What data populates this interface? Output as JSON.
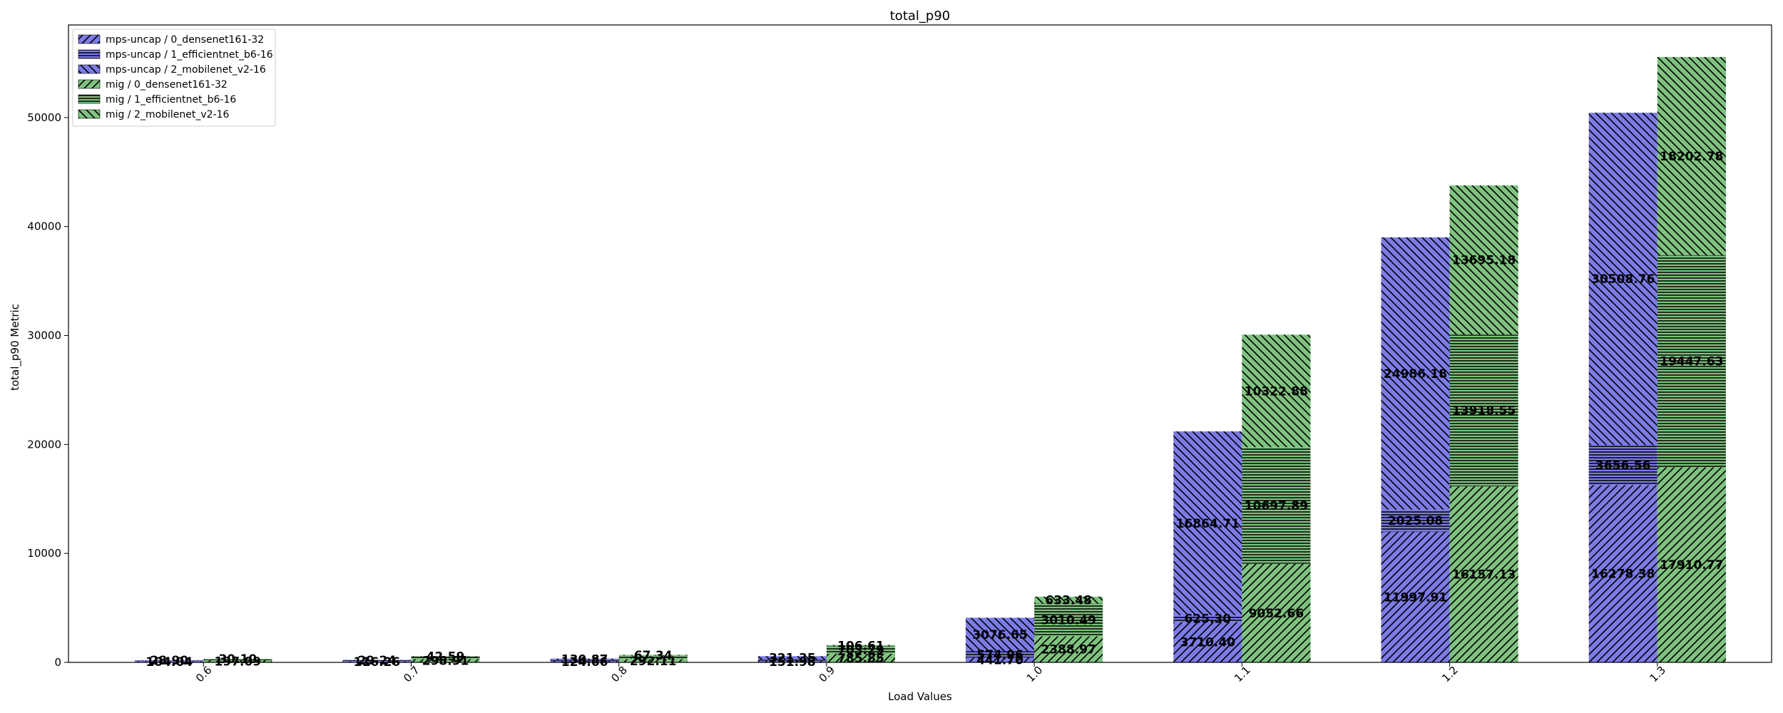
{
  "chart_data": {
    "type": "bar",
    "title": "total_p90",
    "xlabel": "Load Values",
    "ylabel": "total_p90 Metric",
    "ylim": [
      0,
      58500
    ],
    "yticks": [
      0,
      10000,
      20000,
      30000,
      40000,
      50000
    ],
    "ytick_labels": [
      "0",
      "10000",
      "20000",
      "30000",
      "40000",
      "50000"
    ],
    "categories": [
      "0.6",
      "0.7",
      "0.8",
      "0.9",
      "1.0",
      "1.1",
      "1.2",
      "1.3"
    ],
    "stacked": true,
    "grid": false,
    "legend_position": "top-left",
    "groups": [
      {
        "name": "mps-uncap",
        "color": "#7b7be8",
        "series": [
          {
            "name": "0_densenet161-32",
            "hatch": "////",
            "values": [
              104.04,
              116.26,
              124.66,
              151.98,
              441.7,
              3710.4,
              11997.91,
              16278.38
            ],
            "labels": [
              "104.04",
              "116.26",
              "124.66",
              "151.98",
              "441.70",
              "3710.40",
              "11997.91",
              "16278.38"
            ]
          },
          {
            "name": "1_efficientnet_b6-16",
            "hatch": "----",
            "values": [
              70.0,
              80.0,
              89.5,
              98.0,
              574.96,
              625.3,
              2025.08,
              3656.56
            ],
            "labels": [
              "",
              "",
              "",
              "",
              "574.96",
              "625.30",
              "2025.08",
              "3656.56"
            ]
          },
          {
            "name": "2_mobilenet_v2-16",
            "hatch": "\\\\\\\\",
            "values": [
              28.9,
              29.24,
              130.87,
              321.35,
              3076.65,
              16864.71,
              24986.18,
              30508.76
            ],
            "labels": [
              "28.90",
              "29.24",
              "130.87",
              "321.35",
              "3076.65",
              "16864.71",
              "24986.18",
              "30508.76"
            ]
          }
        ]
      },
      {
        "name": "mig",
        "color": "#7fc27f",
        "series": [
          {
            "name": "0_densenet161-32",
            "hatch": "////",
            "values": [
              197.09,
              298.91,
              292.11,
              785.85,
              2388.97,
              9052.66,
              16157.13,
              17910.77
            ],
            "labels": [
              "197.09",
              "298.91",
              "292.11",
              "785.85",
              "2388.97",
              "9052.66",
              "16157.13",
              "17910.77"
            ]
          },
          {
            "name": "1_efficientnet_b6-16",
            "hatch": "----",
            "values": [
              100.0,
              224.44,
              330.5,
              703.29,
              3010.49,
              10697.89,
              13918.55,
              19447.63
            ],
            "labels": [
              "",
              "",
              "",
              "703.29",
              "3010.49",
              "10697.89",
              "13918.55",
              "19447.63"
            ]
          },
          {
            "name": "2_mobilenet_v2-16",
            "hatch": "\\\\\\\\",
            "values": [
              30.1,
              42.59,
              67.34,
              106.61,
              633.48,
              10322.88,
              13695.18,
              18202.78
            ],
            "labels": [
              "30.10",
              "42.59",
              "67.34",
              "106.61",
              "633.48",
              "10322.88",
              "13695.18",
              "18202.78"
            ]
          }
        ]
      }
    ],
    "legend": [
      {
        "label": "mps-uncap / 0_densenet161-32",
        "group": 0,
        "series": 0
      },
      {
        "label": "mps-uncap / 1_efficientnet_b6-16",
        "group": 0,
        "series": 1
      },
      {
        "label": "mps-uncap / 2_mobilenet_v2-16",
        "group": 0,
        "series": 2
      },
      {
        "label": "mig / 0_densenet161-32",
        "group": 1,
        "series": 0
      },
      {
        "label": "mig / 1_efficientnet_b6-16",
        "group": 1,
        "series": 1
      },
      {
        "label": "mig / 2_mobilenet_v2-16",
        "group": 1,
        "series": 2
      }
    ]
  }
}
